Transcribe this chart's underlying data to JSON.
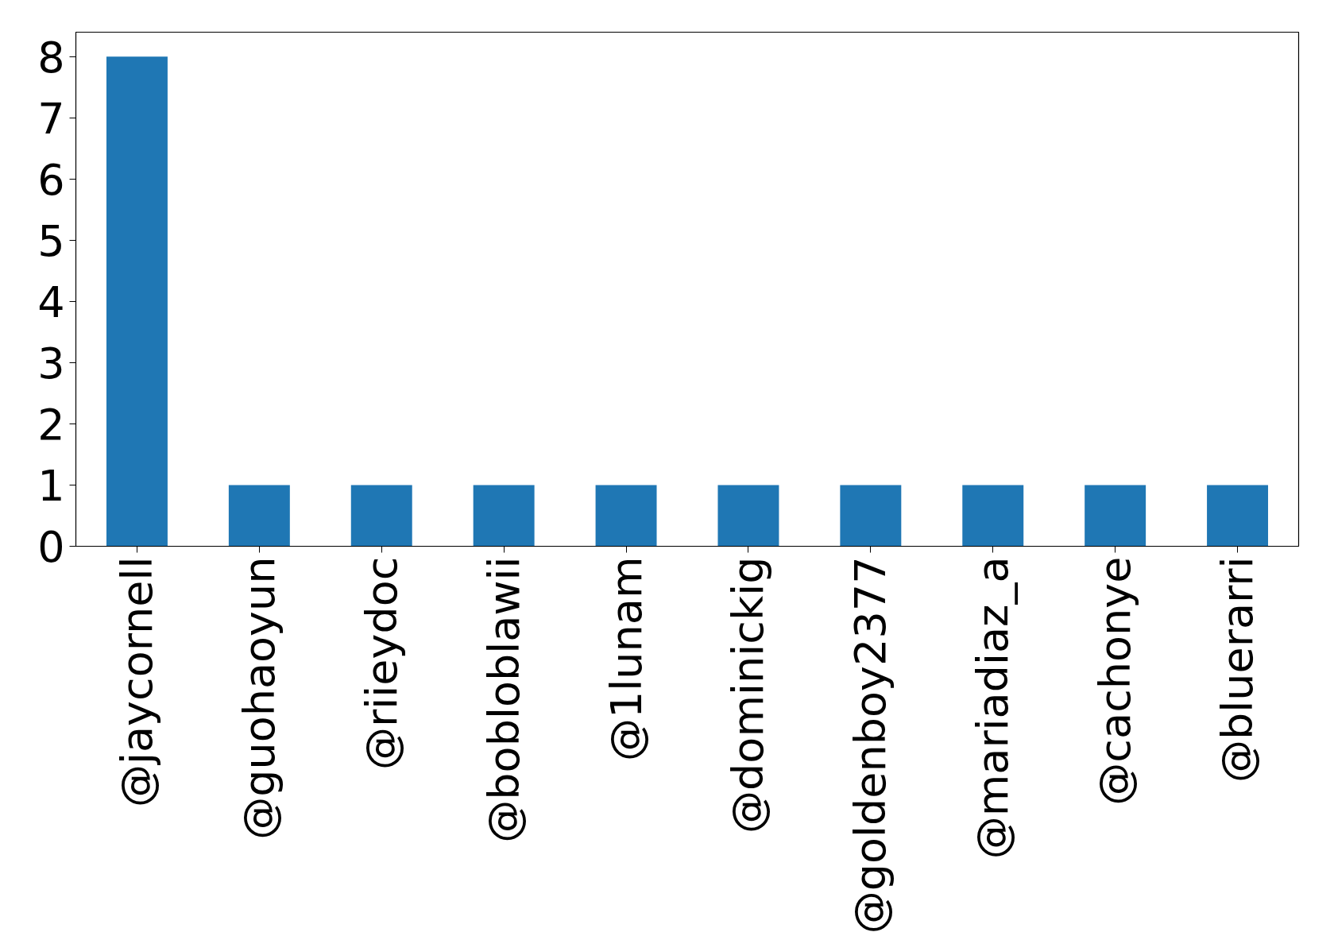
{
  "chart_data": {
    "type": "bar",
    "categories": [
      "@jaycornell",
      "@guohaoyun",
      "@riieydoc",
      "@bobloblawii",
      "@1lunam",
      "@dominickig",
      "@goldenboy2377",
      "@mariadiaz_a",
      "@cachonye",
      "@bluerarri"
    ],
    "values": [
      8,
      1,
      1,
      1,
      1,
      1,
      1,
      1,
      1,
      1
    ],
    "color": "#1f77b4",
    "ylim": [
      0,
      8.4
    ],
    "yticks": [
      0,
      1,
      2,
      3,
      4,
      5,
      6,
      7,
      8
    ],
    "grid": false
  }
}
